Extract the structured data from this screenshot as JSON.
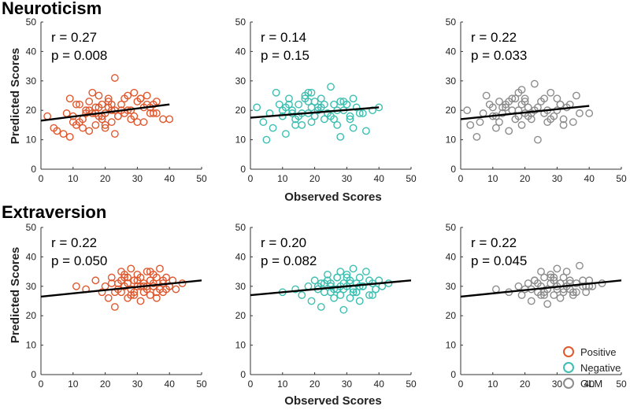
{
  "figure": {
    "row_titles": [
      "Neuroticism",
      "Extraversion"
    ],
    "ylabel": "Predicted Scores",
    "xlabel": "Observed Scores"
  },
  "legend": [
    {
      "label": "Positive",
      "color": "#e0582e"
    },
    {
      "label": "Negative",
      "color": "#3cbfb1"
    },
    {
      "label": "GLM",
      "color": "#8c8c8c"
    }
  ],
  "chart_data": [
    {
      "type": "scatter",
      "row": "Neuroticism",
      "series": "Positive",
      "color": "#e0582e",
      "stats": [
        "r = 0.27",
        "p = 0.008"
      ],
      "xlim": [
        0,
        50
      ],
      "ylim": [
        0,
        50
      ],
      "xticks": [
        0,
        10,
        20,
        30,
        40,
        50
      ],
      "yticks": [
        0,
        10,
        20,
        30,
        40,
        50
      ],
      "fit_line": {
        "x": [
          0,
          40
        ],
        "y": [
          16.5,
          22
        ]
      },
      "points": {
        "x": [
          2,
          4,
          5,
          7,
          8,
          9,
          10,
          11,
          12,
          13,
          14,
          15,
          15,
          16,
          17,
          17,
          18,
          18,
          19,
          19,
          20,
          20,
          21,
          21,
          22,
          22,
          23,
          23,
          24,
          25,
          26,
          27,
          28,
          29,
          30,
          31,
          32,
          33,
          34,
          35,
          36,
          38,
          40,
          10,
          12,
          14,
          16,
          18,
          20,
          22,
          24,
          26,
          28,
          30,
          32,
          34,
          36,
          13,
          17,
          21,
          25,
          29,
          33,
          9,
          11,
          15,
          19,
          23,
          27,
          31,
          35
        ],
        "y": [
          18,
          14,
          13,
          12,
          19,
          24,
          16,
          15,
          22,
          17,
          19,
          13,
          20,
          26,
          15,
          21,
          18,
          25,
          22,
          17,
          14,
          19,
          23,
          24,
          16,
          20,
          31,
          12,
          18,
          22,
          19,
          20,
          17,
          26,
          23,
          24,
          16,
          25,
          21,
          22,
          19,
          17,
          17,
          18,
          16,
          20,
          19,
          21,
          15,
          22,
          18,
          24,
          20,
          16,
          21,
          19,
          23,
          14,
          19,
          21,
          20,
          18,
          22,
          11,
          22,
          23,
          18,
          20,
          25,
          24,
          19
        ]
      }
    },
    {
      "type": "scatter",
      "row": "Neuroticism",
      "series": "Negative",
      "color": "#3cbfb1",
      "stats": [
        "r = 0.14",
        "p = 0.15"
      ],
      "xlim": [
        0,
        50
      ],
      "ylim": [
        0,
        50
      ],
      "xticks": [
        0,
        10,
        20,
        30,
        40,
        50
      ],
      "yticks": [
        0,
        10,
        20,
        30,
        40,
        50
      ],
      "fit_line": {
        "x": [
          0,
          40
        ],
        "y": [
          17.5,
          21
        ]
      },
      "points": {
        "x": [
          2,
          4,
          5,
          6,
          8,
          9,
          10,
          11,
          12,
          13,
          14,
          15,
          16,
          17,
          18,
          18,
          19,
          19,
          20,
          20,
          21,
          22,
          23,
          24,
          25,
          26,
          27,
          28,
          29,
          30,
          31,
          32,
          33,
          35,
          36,
          38,
          40,
          10,
          12,
          14,
          16,
          18,
          20,
          22,
          24,
          26,
          28,
          30,
          32,
          34,
          11,
          15,
          19,
          23,
          27,
          31,
          7,
          13,
          17,
          21,
          25,
          29
        ],
        "y": [
          21,
          16,
          10,
          19,
          26,
          22,
          18,
          12,
          24,
          20,
          17,
          22,
          15,
          25,
          19,
          26,
          21,
          16,
          23,
          18,
          20,
          24,
          17,
          19,
          28,
          22,
          15,
          11,
          20,
          22,
          18,
          24,
          21,
          19,
          13,
          20,
          21,
          20,
          22,
          15,
          19,
          23,
          18,
          21,
          19,
          17,
          23,
          22,
          14,
          19,
          21,
          18,
          26,
          22,
          20,
          17,
          14,
          19,
          24,
          21,
          18,
          23
        ]
      }
    },
    {
      "type": "scatter",
      "row": "Neuroticism",
      "series": "GLM",
      "color": "#8c8c8c",
      "stats": [
        "r = 0.22",
        "p = 0.033"
      ],
      "xlim": [
        0,
        50
      ],
      "ylim": [
        0,
        50
      ],
      "xticks": [
        0,
        10,
        20,
        30,
        40,
        50
      ],
      "yticks": [
        0,
        10,
        20,
        30,
        40,
        50
      ],
      "fit_line": {
        "x": [
          0,
          40
        ],
        "y": [
          17,
          21.5
        ]
      },
      "points": {
        "x": [
          2,
          3,
          5,
          6,
          8,
          9,
          10,
          11,
          12,
          13,
          14,
          15,
          16,
          17,
          18,
          18,
          19,
          19,
          20,
          20,
          21,
          22,
          23,
          24,
          25,
          26,
          27,
          28,
          29,
          30,
          31,
          32,
          33,
          35,
          36,
          37,
          40,
          10,
          12,
          14,
          16,
          18,
          20,
          22,
          24,
          26,
          28,
          30,
          32,
          34,
          11,
          15,
          19,
          23,
          27,
          31,
          7,
          13,
          17,
          21
        ],
        "y": [
          20,
          15,
          11,
          16,
          25,
          22,
          18,
          14,
          23,
          19,
          21,
          13,
          24,
          17,
          20,
          26,
          15,
          22,
          19,
          24,
          21,
          17,
          29,
          10,
          23,
          19,
          20,
          26,
          18,
          24,
          22,
          17,
          21,
          16,
          25,
          19,
          19,
          21,
          16,
          22,
          20,
          18,
          23,
          19,
          21,
          24,
          17,
          20,
          15,
          22,
          18,
          23,
          27,
          20,
          16,
          22,
          19,
          21,
          24,
          18
        ]
      }
    },
    {
      "type": "scatter",
      "row": "Extraversion",
      "series": "Positive",
      "color": "#e0582e",
      "stats": [
        "r = 0.22",
        "p = 0.050"
      ],
      "xlim": [
        0,
        50
      ],
      "ylim": [
        0,
        50
      ],
      "xticks": [
        0,
        10,
        20,
        30,
        40,
        50
      ],
      "yticks": [
        0,
        10,
        20,
        30,
        40,
        50
      ],
      "fit_line": {
        "x": [
          0,
          50
        ],
        "y": [
          26.5,
          32
        ]
      },
      "points": {
        "x": [
          11,
          14,
          17,
          19,
          20,
          21,
          22,
          23,
          24,
          25,
          25,
          26,
          26,
          27,
          27,
          28,
          28,
          29,
          29,
          30,
          30,
          31,
          31,
          32,
          32,
          33,
          33,
          34,
          34,
          35,
          35,
          36,
          36,
          37,
          37,
          38,
          38,
          39,
          40,
          41,
          42,
          44,
          22,
          24,
          26,
          28,
          30,
          32,
          34,
          36,
          38,
          40,
          23,
          27,
          31,
          35,
          39,
          25,
          29,
          33
        ],
        "y": [
          30,
          29,
          32,
          28,
          30,
          26,
          33,
          23,
          31,
          35,
          28,
          30,
          33,
          26,
          31,
          36,
          29,
          32,
          27,
          34,
          30,
          25,
          33,
          28,
          31,
          35,
          29,
          32,
          27,
          34,
          30,
          26,
          33,
          29,
          36,
          31,
          28,
          33,
          30,
          32,
          29,
          31,
          31,
          29,
          34,
          27,
          32,
          30,
          35,
          28,
          32,
          30,
          28,
          33,
          30,
          31,
          29,
          32,
          28,
          30
        ]
      }
    },
    {
      "type": "scatter",
      "row": "Extraversion",
      "series": "Negative",
      "color": "#3cbfb1",
      "stats": [
        "r = 0.20",
        "p = 0.082"
      ],
      "xlim": [
        0,
        50
      ],
      "ylim": [
        0,
        50
      ],
      "xticks": [
        0,
        10,
        20,
        30,
        40,
        50
      ],
      "yticks": [
        0,
        10,
        20,
        30,
        40,
        50
      ],
      "fit_line": {
        "x": [
          0,
          50
        ],
        "y": [
          27,
          32
        ]
      },
      "points": {
        "x": [
          10,
          14,
          16,
          18,
          19,
          20,
          21,
          22,
          23,
          24,
          25,
          25,
          26,
          27,
          27,
          28,
          28,
          29,
          29,
          30,
          30,
          31,
          31,
          32,
          32,
          33,
          33,
          34,
          34,
          35,
          36,
          37,
          38,
          39,
          40,
          41,
          43,
          21,
          23,
          25,
          27,
          29,
          31,
          33,
          35,
          37,
          39,
          22,
          26,
          30,
          34,
          38,
          24,
          28,
          32
        ],
        "y": [
          28,
          29,
          27,
          30,
          25,
          32,
          29,
          23,
          31,
          34,
          28,
          30,
          26,
          33,
          29,
          35,
          27,
          31,
          22,
          30,
          34,
          26,
          32,
          29,
          36,
          28,
          31,
          25,
          33,
          30,
          35,
          27,
          31,
          29,
          32,
          30,
          31,
          30,
          28,
          31,
          33,
          29,
          31,
          28,
          30,
          32,
          29,
          31,
          29,
          33,
          30,
          27,
          32,
          30,
          28
        ]
      }
    },
    {
      "type": "scatter",
      "row": "Extraversion",
      "series": "GLM",
      "color": "#8c8c8c",
      "stats": [
        "r = 0.22",
        "p = 0.045"
      ],
      "xlim": [
        0,
        50
      ],
      "ylim": [
        0,
        50
      ],
      "xticks": [
        0,
        10,
        20,
        30,
        40,
        50
      ],
      "yticks": [
        0,
        10,
        20,
        30,
        40,
        50
      ],
      "fit_line": {
        "x": [
          0,
          50
        ],
        "y": [
          26.5,
          32
        ]
      },
      "points": {
        "x": [
          11,
          15,
          18,
          19,
          20,
          21,
          22,
          23,
          24,
          25,
          25,
          26,
          26,
          27,
          27,
          28,
          28,
          29,
          29,
          30,
          30,
          31,
          31,
          32,
          32,
          33,
          33,
          34,
          34,
          35,
          36,
          37,
          38,
          39,
          40,
          41,
          44,
          22,
          24,
          26,
          28,
          30,
          32,
          34,
          36,
          38,
          40,
          23,
          27,
          31,
          35,
          39,
          25,
          29,
          33
        ],
        "y": [
          29,
          28,
          30,
          27,
          29,
          31,
          25,
          32,
          28,
          30,
          35,
          27,
          33,
          29,
          24,
          31,
          34,
          27,
          32,
          29,
          36,
          26,
          31,
          33,
          28,
          30,
          35,
          29,
          32,
          27,
          31,
          37,
          30,
          28,
          32,
          30,
          31,
          29,
          31,
          28,
          33,
          30,
          29,
          31,
          28,
          32,
          30,
          32,
          29,
          31,
          28,
          30,
          27,
          33,
          30
        ]
      }
    }
  ]
}
